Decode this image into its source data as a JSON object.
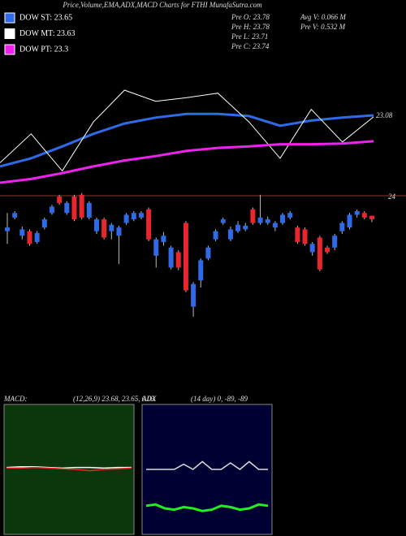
{
  "chart_data": [
    {
      "type": "candlestick",
      "title": "Price,Volume,EMA,ADX,MACD Charts for FTHI MunafaSutra.com",
      "info": [
        "Pre  O: 23.78",
        "Pre  H: 23.78",
        "Pre  L: 23.71",
        "Pre  C: 23.74",
        "Avg V: 0.066  M",
        "Pre  V: 0.532  M"
      ],
      "open": [
        23.61,
        23.76,
        23.56,
        23.61,
        23.49,
        23.65,
        23.81,
        23.99,
        23.81,
        23.99,
        24.01,
        23.76,
        23.61,
        23.74,
        23.61,
        23.56,
        23.7,
        23.74,
        23.76,
        23.85,
        23.34,
        23.49,
        23.21,
        23.38,
        23.7,
        22.78,
        23.07,
        23.31,
        23.52,
        23.7,
        23.52,
        23.61,
        23.63,
        23.85,
        23.7,
        23.7,
        23.65,
        23.7,
        23.76,
        23.65,
        23.63,
        23.38,
        23.54,
        23.43,
        23.43,
        23.61,
        23.65,
        23.79,
        23.81,
        23.78
      ],
      "high": [
        23.81,
        23.83,
        23.66,
        23.63,
        23.61,
        23.76,
        23.9,
        24.01,
        23.94,
        24.01,
        24.03,
        23.94,
        23.76,
        23.76,
        23.7,
        23.67,
        23.81,
        23.83,
        23.83,
        23.87,
        23.54,
        23.6,
        23.45,
        23.4,
        23.72,
        23.05,
        23.31,
        23.45,
        23.63,
        23.76,
        23.66,
        23.72,
        23.7,
        23.87,
        24.01,
        23.77,
        23.72,
        23.81,
        23.83,
        23.67,
        23.65,
        23.49,
        23.56,
        23.45,
        23.58,
        23.72,
        23.81,
        23.85,
        23.83,
        23.78
      ],
      "low": [
        23.47,
        23.74,
        23.52,
        23.45,
        23.47,
        23.63,
        23.79,
        23.9,
        23.79,
        23.72,
        23.74,
        23.74,
        23.58,
        23.52,
        23.52,
        23.25,
        23.68,
        23.72,
        23.74,
        23.5,
        23.21,
        23.45,
        23.19,
        23.18,
        22.94,
        22.67,
        22.99,
        23.29,
        23.5,
        23.68,
        23.5,
        23.59,
        23.61,
        23.68,
        23.68,
        23.68,
        23.61,
        23.68,
        23.74,
        23.47,
        23.45,
        23.34,
        23.17,
        23.36,
        23.4,
        23.58,
        23.63,
        23.76,
        23.74,
        23.71
      ],
      "close": [
        23.65,
        23.81,
        23.63,
        23.47,
        23.59,
        23.74,
        23.88,
        23.92,
        23.92,
        23.74,
        23.76,
        23.92,
        23.74,
        23.54,
        23.68,
        23.65,
        23.79,
        23.81,
        23.81,
        23.52,
        23.52,
        23.56,
        23.43,
        23.21,
        22.96,
        23.03,
        23.29,
        23.43,
        23.61,
        23.74,
        23.63,
        23.68,
        23.67,
        23.7,
        23.76,
        23.74,
        23.7,
        23.79,
        23.81,
        23.49,
        23.47,
        23.47,
        23.19,
        23.38,
        23.56,
        23.7,
        23.79,
        23.83,
        23.76,
        23.74
      ],
      "up_color": "#2f6be8",
      "down_color": "#e8262e",
      "ylim": [
        22.58,
        24.08
      ],
      "yticks": [
        24
      ],
      "grid": true
    },
    {
      "type": "line",
      "annotation": "23.08",
      "series": [
        {
          "name": "DOW ST: 23.65",
          "color": "#2f6be8",
          "values": [
            22.96,
            23.07,
            23.23,
            23.4,
            23.54,
            23.62,
            23.67,
            23.67,
            23.64,
            23.51,
            23.58,
            23.62,
            23.65
          ]
        },
        {
          "name": "DOW MT: 23.63",
          "color": "#ffffff",
          "values": [
            23.01,
            23.4,
            22.9,
            23.56,
            23.99,
            23.84,
            23.89,
            23.95,
            23.56,
            23.07,
            23.73,
            23.29,
            23.63
          ]
        },
        {
          "name": "DOW PT: 23.3",
          "color": "#ee22ee",
          "values": [
            22.74,
            22.79,
            22.87,
            22.96,
            23.04,
            23.1,
            23.17,
            23.21,
            23.23,
            23.26,
            23.26,
            23.27,
            23.3
          ]
        }
      ],
      "ylim": [
        22.63,
        24.55
      ]
    },
    {
      "type": "line",
      "label": "MACD:",
      "params": "(12,26,9) 23.68, 23.65, 0.03",
      "background": "#0c360c",
      "series": [
        {
          "color": "#ffffff",
          "values": [
            0.03,
            0.04,
            0.04,
            0.03,
            0.02,
            0.03,
            0.03,
            0.02,
            0.03,
            0.03
          ]
        },
        {
          "color": "#e8262e",
          "values": [
            0.02,
            0.02,
            0.03,
            0.02,
            0.01,
            0.0,
            -0.02,
            0.0,
            0.01,
            0.02
          ]
        }
      ],
      "ylim": [
        -1,
        1
      ]
    },
    {
      "type": "line",
      "label": "ADX",
      "params": "(14 day) 0, -89, -89",
      "background": "#000033",
      "series": [
        {
          "color": "#dddddd",
          "values": [
            50,
            50,
            50,
            50,
            54,
            50,
            56,
            50,
            50,
            55,
            50,
            56,
            50,
            50
          ]
        },
        {
          "color": "#22ee22",
          "values": [
            22,
            23,
            20,
            19,
            21,
            20,
            18,
            19,
            22,
            21,
            19,
            20,
            23,
            22
          ]
        }
      ],
      "ylim": [
        0,
        100
      ]
    }
  ]
}
